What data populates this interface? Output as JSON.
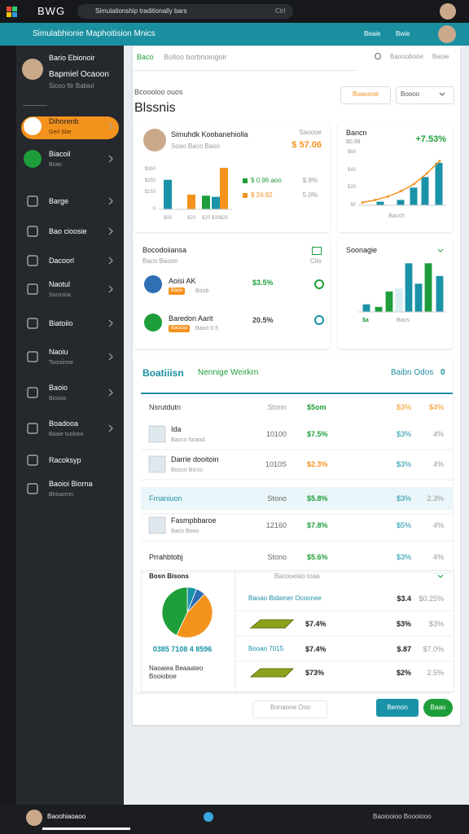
{
  "os_bar": {
    "app": "BWG",
    "search": "Simulationship traditionally bars",
    "shortcut": "Ctrl"
  },
  "header": {
    "title": "Simulabhionie Maphoitision Mnics",
    "links": [
      "Beaie",
      "Bwie"
    ]
  },
  "sidebar": {
    "name": "Bario Ebionoir",
    "role": "Bapmiel Ocaoon",
    "meta": "Sicoo fiir Babiol",
    "items": [
      {
        "label": "Dihorenb",
        "sub": "Gerl Sbe"
      },
      {
        "label": "Biacoil",
        "sub": "Bioto"
      },
      {
        "label": "Barge"
      },
      {
        "label": "Bao cioosie"
      },
      {
        "label": "Dacoorl"
      },
      {
        "label": "Naotul",
        "sub": "Socinioa"
      },
      {
        "label": "Biatoiio"
      },
      {
        "label": "Naoiu",
        "sub": "Tooniinoe"
      },
      {
        "label": "Baoio",
        "sub": "Biosoo"
      },
      {
        "label": "Boadooa",
        "sub": "Baaie tuoloee"
      },
      {
        "label": "Racoksyp"
      },
      {
        "label": "Baoioi Biorna",
        "sub": "Bhisarrnn"
      }
    ]
  },
  "tabs": {
    "items": [
      "Baco",
      "Bolloo borbnoingoir"
    ],
    "right": [
      "Baooobooe",
      "Baoie"
    ]
  },
  "page": {
    "subtitle": "Bcoooloo ouos",
    "title": "Blssnis",
    "actions": [
      "Boaoooe",
      "Boooo"
    ]
  },
  "profit_card": {
    "name": "Simuhdk Koobanehiolla",
    "sub": "Soao Baco Baoo",
    "label": "Saoooe",
    "value": "$ 57.06",
    "chart": {
      "ylim": [
        0,
        380
      ],
      "yticks": [
        {
          "value": 350,
          "label": "$350"
        },
        {
          "value": 250,
          "label": "$250"
        },
        {
          "value": 150,
          "label": "$150"
        },
        0
      ],
      "categories": [
        "$00",
        "$20",
        "$20",
        "$30",
        "$20"
      ],
      "values": [
        260,
        130,
        120,
        110,
        365
      ],
      "colors": [
        "#1a93a8",
        "#f4921e",
        "#1e9e3a",
        "#1a93a8",
        "#f4921e"
      ]
    },
    "legend": [
      {
        "label": "$ 0.96 aoo",
        "value": "$.9%",
        "color": "#1e9e3a"
      },
      {
        "label": "$ 24.92",
        "value": "5.0%",
        "color": "#f4921e"
      }
    ]
  },
  "trend_card": {
    "title": "Bancn",
    "sub": "$0.98",
    "change": "+7.53%",
    "chart": {
      "ylim": [
        0,
        60
      ],
      "yticks": [
        {
          "value": 60,
          "label": "$60"
        },
        {
          "value": 40,
          "label": "$40"
        },
        {
          "value": 20,
          "label": "$20"
        },
        {
          "value": 0,
          "label": "$0"
        }
      ],
      "bars": [
        4,
        6,
        20,
        32,
        48
      ],
      "line": [
        3,
        6,
        10,
        16,
        24,
        36,
        50
      ],
      "bar_color": "#1a93a8",
      "line_color": "#f4921e",
      "x_label": "Bacch"
    }
  },
  "contacts_card": {
    "title": "Bocodoiiansa",
    "sub": "Baco Baoon",
    "badge": "Ciio",
    "items": [
      {
        "name": "Aoisi AK",
        "tag": "Baoo",
        "meta": "Boob",
        "value": "$3.5%"
      },
      {
        "name": "Baredon Aarit",
        "tag": "Baocaa",
        "meta": "Baoo 0.5",
        "value": "20.5%"
      }
    ]
  },
  "mix_card": {
    "title": "Soonagie",
    "chart": {
      "ylim": [
        0,
        100
      ],
      "values": [
        15,
        10,
        40,
        45,
        95,
        55,
        95,
        70
      ],
      "colors": [
        "#1a93a8",
        "#1e9e3a",
        "#1e9e3a",
        "#d8eef2",
        "#1a93a8",
        "#1a93a8",
        "#1e9e3a",
        "#1a93a8"
      ]
    },
    "labels": [
      "$a",
      "Baos"
    ]
  },
  "table": {
    "tabs": [
      "Boatiiisn",
      "Nennige Weirkrn"
    ],
    "filter": "Baibn Odos",
    "filter_count": "0",
    "columns": [
      "Nsrutdutn",
      "Stonn",
      "$5om",
      "$3%",
      "$4%"
    ],
    "rows": [
      {
        "name": "Ida",
        "sub": "Bacco foraod",
        "cells": [
          "10100",
          "$7.5%",
          "$3%",
          "4%"
        ]
      },
      {
        "name": "Darrie dooitoin",
        "sub": "Booco Bicco",
        "cells": [
          "1010S",
          "$2.3%",
          "$3%",
          "4%"
        ]
      },
      {
        "name": "Frnaniuon",
        "cells": [
          "Stono",
          "$5.8%",
          "$3%",
          "2.3%"
        ]
      },
      {
        "name": "Fasmpbbaroe",
        "sub": "Baco Booo",
        "cells": [
          "12160",
          "$7.8%",
          "$5%",
          "4%"
        ]
      },
      {
        "name": "Prrahbtobj",
        "cells": [
          "Stono",
          "$5.6%",
          "$3%",
          "4%"
        ]
      }
    ]
  },
  "breakdown": {
    "title": "Bosn Bisons",
    "pie": {
      "values": [
        6,
        6,
        45,
        43
      ],
      "colors": [
        "#1a93a8",
        "#2f6fb5",
        "#f4921e",
        "#1e9e3a"
      ]
    },
    "total": "0385 7108 4 8596",
    "note": [
      "Naoaiea Beaaateo",
      "Booioboe"
    ],
    "heading": "Bacoueiao toaa",
    "rows": [
      {
        "label": "Baoao Bidamer Ocoonee",
        "cells": [
          "$3.4",
          "$0.25%"
        ]
      },
      {
        "cells": [
          "$7.4%",
          "$3%",
          "$3%"
        ]
      },
      {
        "label": "Booao 7015",
        "cells": [
          "$7.4%",
          "$.87",
          "$7.0%"
        ]
      },
      {
        "cells": [
          "$73%",
          "$2%",
          "2.5%"
        ]
      }
    ]
  },
  "pagination": "Bonaooe Ooo",
  "footer_buttons": [
    "Bemon",
    "Baao"
  ],
  "taskbar": {
    "user": "Baoohiaoaoo",
    "right": "Baoiooioo Boooiooo"
  }
}
